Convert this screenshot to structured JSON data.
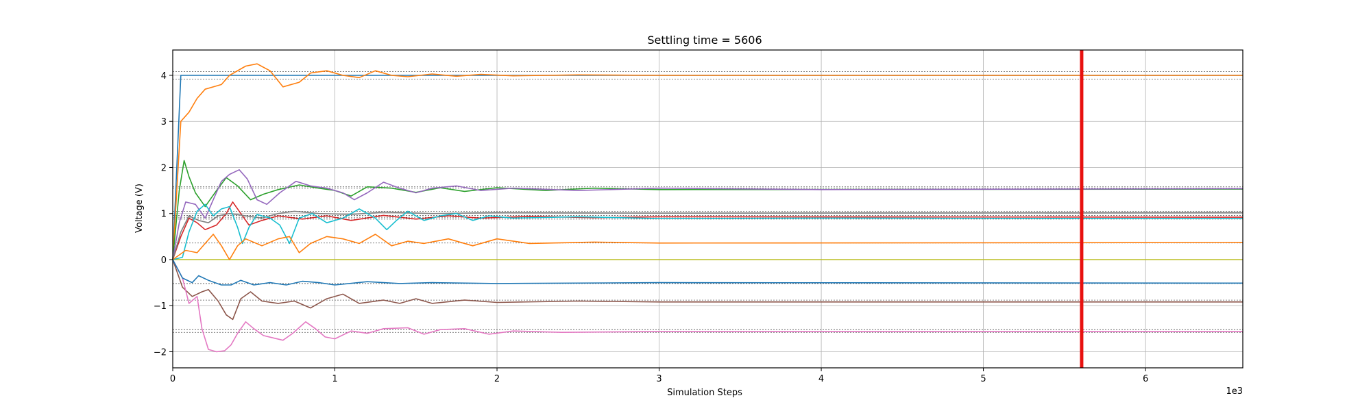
{
  "chart_data": {
    "type": "line",
    "title": "Settling time = 5606",
    "xlabel": "Simulation Steps",
    "ylabel": "Voltage (V)",
    "x_scale_label": "1e3",
    "xlim": [
      0,
      6.6
    ],
    "ylim": [
      -2.35,
      4.55
    ],
    "xticks": [
      0,
      1,
      2,
      3,
      4,
      5,
      6
    ],
    "yticks": [
      -2,
      -1,
      0,
      1,
      2,
      3,
      4
    ],
    "grid": true,
    "settling_line": {
      "x": 5.606,
      "color": "#e8110f"
    },
    "target_levels": [
      4.08,
      3.92,
      1.58,
      1.55,
      1.05,
      0.96,
      0.92,
      0.88,
      0.36,
      -0.52,
      -0.88,
      -1.52,
      -1.58
    ],
    "series": [
      {
        "color": "#1f77b4",
        "points": [
          [
            0,
            0
          ],
          [
            0.05,
            4.0
          ],
          [
            6.6,
            4.0
          ]
        ]
      },
      {
        "color": "#ff7f0e",
        "points": [
          [
            0,
            0
          ],
          [
            0.05,
            3.0
          ],
          [
            0.1,
            3.2
          ],
          [
            0.15,
            3.5
          ],
          [
            0.2,
            3.7
          ],
          [
            0.3,
            3.8
          ],
          [
            0.35,
            4.0
          ],
          [
            0.45,
            4.2
          ],
          [
            0.52,
            4.25
          ],
          [
            0.6,
            4.1
          ],
          [
            0.68,
            3.75
          ],
          [
            0.78,
            3.85
          ],
          [
            0.85,
            4.05
          ],
          [
            0.95,
            4.1
          ],
          [
            1.05,
            4.0
          ],
          [
            1.15,
            3.95
          ],
          [
            1.25,
            4.1
          ],
          [
            1.35,
            4.0
          ],
          [
            1.45,
            3.97
          ],
          [
            1.6,
            4.03
          ],
          [
            1.75,
            3.98
          ],
          [
            1.9,
            4.02
          ],
          [
            2.1,
            3.99
          ],
          [
            2.5,
            4.01
          ],
          [
            3.0,
            4.0
          ],
          [
            6.6,
            4.0
          ]
        ]
      },
      {
        "color": "#2ca02c",
        "points": [
          [
            0,
            0
          ],
          [
            0.04,
            1.5
          ],
          [
            0.07,
            2.15
          ],
          [
            0.1,
            1.8
          ],
          [
            0.14,
            1.45
          ],
          [
            0.2,
            1.15
          ],
          [
            0.27,
            1.5
          ],
          [
            0.33,
            1.78
          ],
          [
            0.4,
            1.6
          ],
          [
            0.48,
            1.3
          ],
          [
            0.56,
            1.42
          ],
          [
            0.65,
            1.52
          ],
          [
            0.78,
            1.62
          ],
          [
            0.9,
            1.55
          ],
          [
            1.0,
            1.5
          ],
          [
            1.1,
            1.38
          ],
          [
            1.2,
            1.58
          ],
          [
            1.35,
            1.55
          ],
          [
            1.5,
            1.46
          ],
          [
            1.65,
            1.56
          ],
          [
            1.8,
            1.48
          ],
          [
            2.0,
            1.56
          ],
          [
            2.3,
            1.5
          ],
          [
            2.6,
            1.55
          ],
          [
            3.0,
            1.52
          ],
          [
            6.6,
            1.53
          ]
        ]
      },
      {
        "color": "#d62728",
        "points": [
          [
            0,
            0
          ],
          [
            0.05,
            0.5
          ],
          [
            0.1,
            0.9
          ],
          [
            0.15,
            0.8
          ],
          [
            0.2,
            0.65
          ],
          [
            0.27,
            0.75
          ],
          [
            0.33,
            1.0
          ],
          [
            0.37,
            1.25
          ],
          [
            0.42,
            1.0
          ],
          [
            0.47,
            0.75
          ],
          [
            0.55,
            0.85
          ],
          [
            0.65,
            0.95
          ],
          [
            0.8,
            0.88
          ],
          [
            0.95,
            0.95
          ],
          [
            1.1,
            0.85
          ],
          [
            1.3,
            0.96
          ],
          [
            1.5,
            0.88
          ],
          [
            1.7,
            0.95
          ],
          [
            1.9,
            0.9
          ],
          [
            2.2,
            0.94
          ],
          [
            2.6,
            0.91
          ],
          [
            3.0,
            0.93
          ],
          [
            6.6,
            0.92
          ]
        ]
      },
      {
        "color": "#9467bd",
        "points": [
          [
            0,
            0
          ],
          [
            0.04,
            0.8
          ],
          [
            0.08,
            1.25
          ],
          [
            0.14,
            1.2
          ],
          [
            0.2,
            0.9
          ],
          [
            0.25,
            1.3
          ],
          [
            0.3,
            1.7
          ],
          [
            0.35,
            1.85
          ],
          [
            0.41,
            1.95
          ],
          [
            0.46,
            1.75
          ],
          [
            0.52,
            1.3
          ],
          [
            0.58,
            1.2
          ],
          [
            0.66,
            1.45
          ],
          [
            0.76,
            1.7
          ],
          [
            0.85,
            1.6
          ],
          [
            0.95,
            1.55
          ],
          [
            1.05,
            1.45
          ],
          [
            1.12,
            1.3
          ],
          [
            1.2,
            1.45
          ],
          [
            1.3,
            1.68
          ],
          [
            1.4,
            1.55
          ],
          [
            1.5,
            1.45
          ],
          [
            1.6,
            1.55
          ],
          [
            1.75,
            1.6
          ],
          [
            1.9,
            1.5
          ],
          [
            2.1,
            1.55
          ],
          [
            2.5,
            1.5
          ],
          [
            3.0,
            1.55
          ],
          [
            4.0,
            1.52
          ],
          [
            6.6,
            1.54
          ]
        ]
      },
      {
        "color": "#8c564b",
        "points": [
          [
            0,
            0
          ],
          [
            0.06,
            -0.6
          ],
          [
            0.12,
            -0.8
          ],
          [
            0.18,
            -0.7
          ],
          [
            0.22,
            -0.65
          ],
          [
            0.28,
            -0.9
          ],
          [
            0.33,
            -1.2
          ],
          [
            0.37,
            -1.3
          ],
          [
            0.42,
            -0.85
          ],
          [
            0.48,
            -0.7
          ],
          [
            0.55,
            -0.9
          ],
          [
            0.65,
            -0.95
          ],
          [
            0.75,
            -0.9
          ],
          [
            0.85,
            -1.05
          ],
          [
            0.95,
            -0.85
          ],
          [
            1.05,
            -0.75
          ],
          [
            1.15,
            -0.95
          ],
          [
            1.3,
            -0.88
          ],
          [
            1.4,
            -0.95
          ],
          [
            1.5,
            -0.85
          ],
          [
            1.6,
            -0.95
          ],
          [
            1.8,
            -0.88
          ],
          [
            2.0,
            -0.93
          ],
          [
            2.5,
            -0.9
          ],
          [
            3.0,
            -0.92
          ],
          [
            6.6,
            -0.92
          ]
        ]
      },
      {
        "color": "#e377c2",
        "points": [
          [
            0,
            0
          ],
          [
            0.06,
            -0.4
          ],
          [
            0.1,
            -0.95
          ],
          [
            0.15,
            -0.8
          ],
          [
            0.18,
            -1.5
          ],
          [
            0.22,
            -1.95
          ],
          [
            0.27,
            -2.0
          ],
          [
            0.32,
            -1.98
          ],
          [
            0.36,
            -1.85
          ],
          [
            0.4,
            -1.6
          ],
          [
            0.45,
            -1.35
          ],
          [
            0.5,
            -1.5
          ],
          [
            0.56,
            -1.65
          ],
          [
            0.62,
            -1.7
          ],
          [
            0.68,
            -1.75
          ],
          [
            0.74,
            -1.6
          ],
          [
            0.82,
            -1.35
          ],
          [
            0.88,
            -1.5
          ],
          [
            0.94,
            -1.68
          ],
          [
            1.0,
            -1.72
          ],
          [
            1.1,
            -1.55
          ],
          [
            1.2,
            -1.6
          ],
          [
            1.3,
            -1.5
          ],
          [
            1.45,
            -1.48
          ],
          [
            1.55,
            -1.62
          ],
          [
            1.65,
            -1.52
          ],
          [
            1.8,
            -1.5
          ],
          [
            1.95,
            -1.62
          ],
          [
            2.1,
            -1.55
          ],
          [
            2.4,
            -1.58
          ],
          [
            3.0,
            -1.56
          ],
          [
            6.6,
            -1.56
          ]
        ]
      },
      {
        "color": "#7f7f7f",
        "points": [
          [
            0,
            0
          ],
          [
            0.05,
            0.6
          ],
          [
            0.1,
            0.95
          ],
          [
            0.16,
            0.85
          ],
          [
            0.22,
            0.8
          ],
          [
            0.28,
            0.95
          ],
          [
            0.35,
            1.0
          ],
          [
            0.45,
            0.95
          ],
          [
            0.55,
            0.9
          ],
          [
            0.65,
            1.0
          ],
          [
            0.75,
            1.05
          ],
          [
            0.9,
            1.0
          ],
          [
            1.1,
            0.98
          ],
          [
            1.3,
            1.03
          ],
          [
            1.6,
            1.0
          ],
          [
            2.0,
            1.02
          ],
          [
            3.0,
            1.01
          ],
          [
            6.6,
            1.02
          ]
        ]
      },
      {
        "color": "#bcbd22",
        "points": [
          [
            0,
            0
          ],
          [
            6.6,
            0
          ]
        ]
      },
      {
        "color": "#17becf",
        "points": [
          [
            0,
            0
          ],
          [
            0.06,
            0.05
          ],
          [
            0.1,
            0.6
          ],
          [
            0.15,
            1.05
          ],
          [
            0.2,
            1.2
          ],
          [
            0.25,
            0.95
          ],
          [
            0.3,
            1.1
          ],
          [
            0.35,
            1.15
          ],
          [
            0.4,
            0.7
          ],
          [
            0.43,
            0.35
          ],
          [
            0.47,
            0.7
          ],
          [
            0.52,
            0.98
          ],
          [
            0.6,
            0.9
          ],
          [
            0.66,
            0.75
          ],
          [
            0.72,
            0.35
          ],
          [
            0.78,
            0.9
          ],
          [
            0.86,
            1.0
          ],
          [
            0.95,
            0.8
          ],
          [
            1.05,
            0.9
          ],
          [
            1.15,
            1.1
          ],
          [
            1.25,
            0.9
          ],
          [
            1.32,
            0.65
          ],
          [
            1.38,
            0.85
          ],
          [
            1.45,
            1.05
          ],
          [
            1.55,
            0.85
          ],
          [
            1.65,
            0.95
          ],
          [
            1.75,
            1.0
          ],
          [
            1.85,
            0.85
          ],
          [
            1.95,
            0.95
          ],
          [
            2.1,
            0.9
          ],
          [
            2.5,
            0.93
          ],
          [
            3.0,
            0.89
          ],
          [
            4.0,
            0.9
          ],
          [
            6.6,
            0.89
          ]
        ]
      },
      {
        "color": "#ff7f0e",
        "points": [
          [
            0,
            0
          ],
          [
            0.08,
            0.2
          ],
          [
            0.15,
            0.15
          ],
          [
            0.2,
            0.35
          ],
          [
            0.25,
            0.55
          ],
          [
            0.3,
            0.3
          ],
          [
            0.35,
            0.0
          ],
          [
            0.4,
            0.3
          ],
          [
            0.45,
            0.45
          ],
          [
            0.55,
            0.3
          ],
          [
            0.65,
            0.45
          ],
          [
            0.72,
            0.5
          ],
          [
            0.78,
            0.15
          ],
          [
            0.85,
            0.35
          ],
          [
            0.95,
            0.5
          ],
          [
            1.05,
            0.45
          ],
          [
            1.15,
            0.35
          ],
          [
            1.25,
            0.55
          ],
          [
            1.35,
            0.3
          ],
          [
            1.45,
            0.4
          ],
          [
            1.55,
            0.35
          ],
          [
            1.7,
            0.45
          ],
          [
            1.85,
            0.3
          ],
          [
            2.0,
            0.45
          ],
          [
            2.2,
            0.35
          ],
          [
            2.6,
            0.38
          ],
          [
            3.0,
            0.36
          ],
          [
            6.6,
            0.37
          ]
        ]
      },
      {
        "color": "#1f77b4",
        "points": [
          [
            0,
            0
          ],
          [
            0.06,
            -0.4
          ],
          [
            0.12,
            -0.5
          ],
          [
            0.16,
            -0.35
          ],
          [
            0.22,
            -0.45
          ],
          [
            0.3,
            -0.55
          ],
          [
            0.36,
            -0.55
          ],
          [
            0.42,
            -0.45
          ],
          [
            0.5,
            -0.55
          ],
          [
            0.6,
            -0.5
          ],
          [
            0.7,
            -0.55
          ],
          [
            0.8,
            -0.47
          ],
          [
            0.9,
            -0.5
          ],
          [
            1.0,
            -0.55
          ],
          [
            1.2,
            -0.48
          ],
          [
            1.4,
            -0.52
          ],
          [
            1.6,
            -0.5
          ],
          [
            2.0,
            -0.52
          ],
          [
            3.0,
            -0.5
          ],
          [
            6.6,
            -0.51
          ]
        ]
      }
    ]
  }
}
